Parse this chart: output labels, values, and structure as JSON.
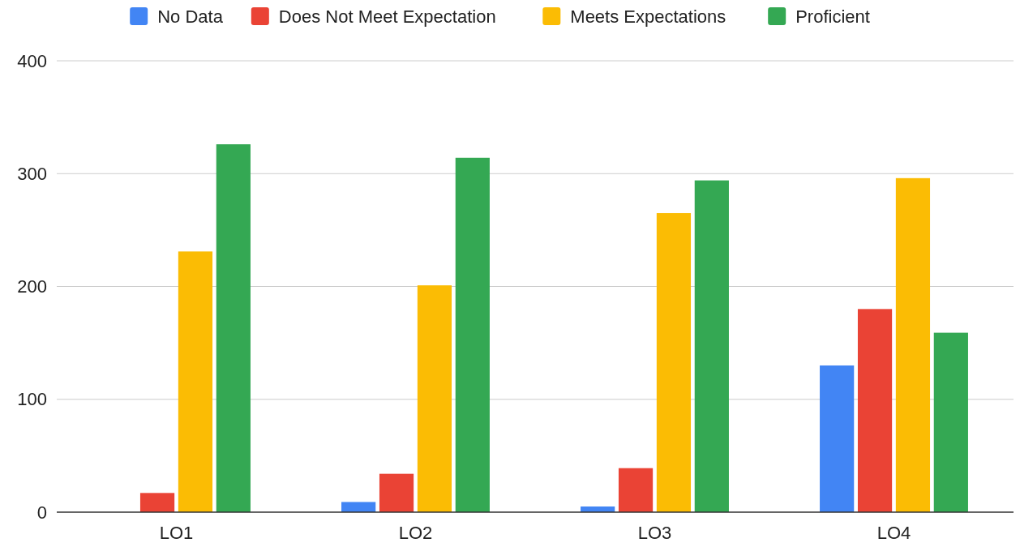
{
  "chart_data": {
    "type": "bar",
    "categories": [
      "LO1",
      "LO2",
      "LO3",
      "LO4"
    ],
    "series": [
      {
        "name": "No Data",
        "color": "#4285f4",
        "values": [
          0,
          9,
          5,
          130
        ]
      },
      {
        "name": "Does Not Meet Expectation",
        "color": "#ea4335",
        "values": [
          17,
          34,
          39,
          180
        ]
      },
      {
        "name": "Meets Expectations",
        "color": "#fbbc04",
        "values": [
          231,
          201,
          265,
          296
        ]
      },
      {
        "name": "Proficient",
        "color": "#34a853",
        "values": [
          326,
          314,
          294,
          159
        ]
      }
    ],
    "ylim": [
      0,
      400
    ],
    "yticks": [
      0,
      100,
      200,
      300,
      400
    ],
    "grid": "y",
    "legend": "top"
  }
}
